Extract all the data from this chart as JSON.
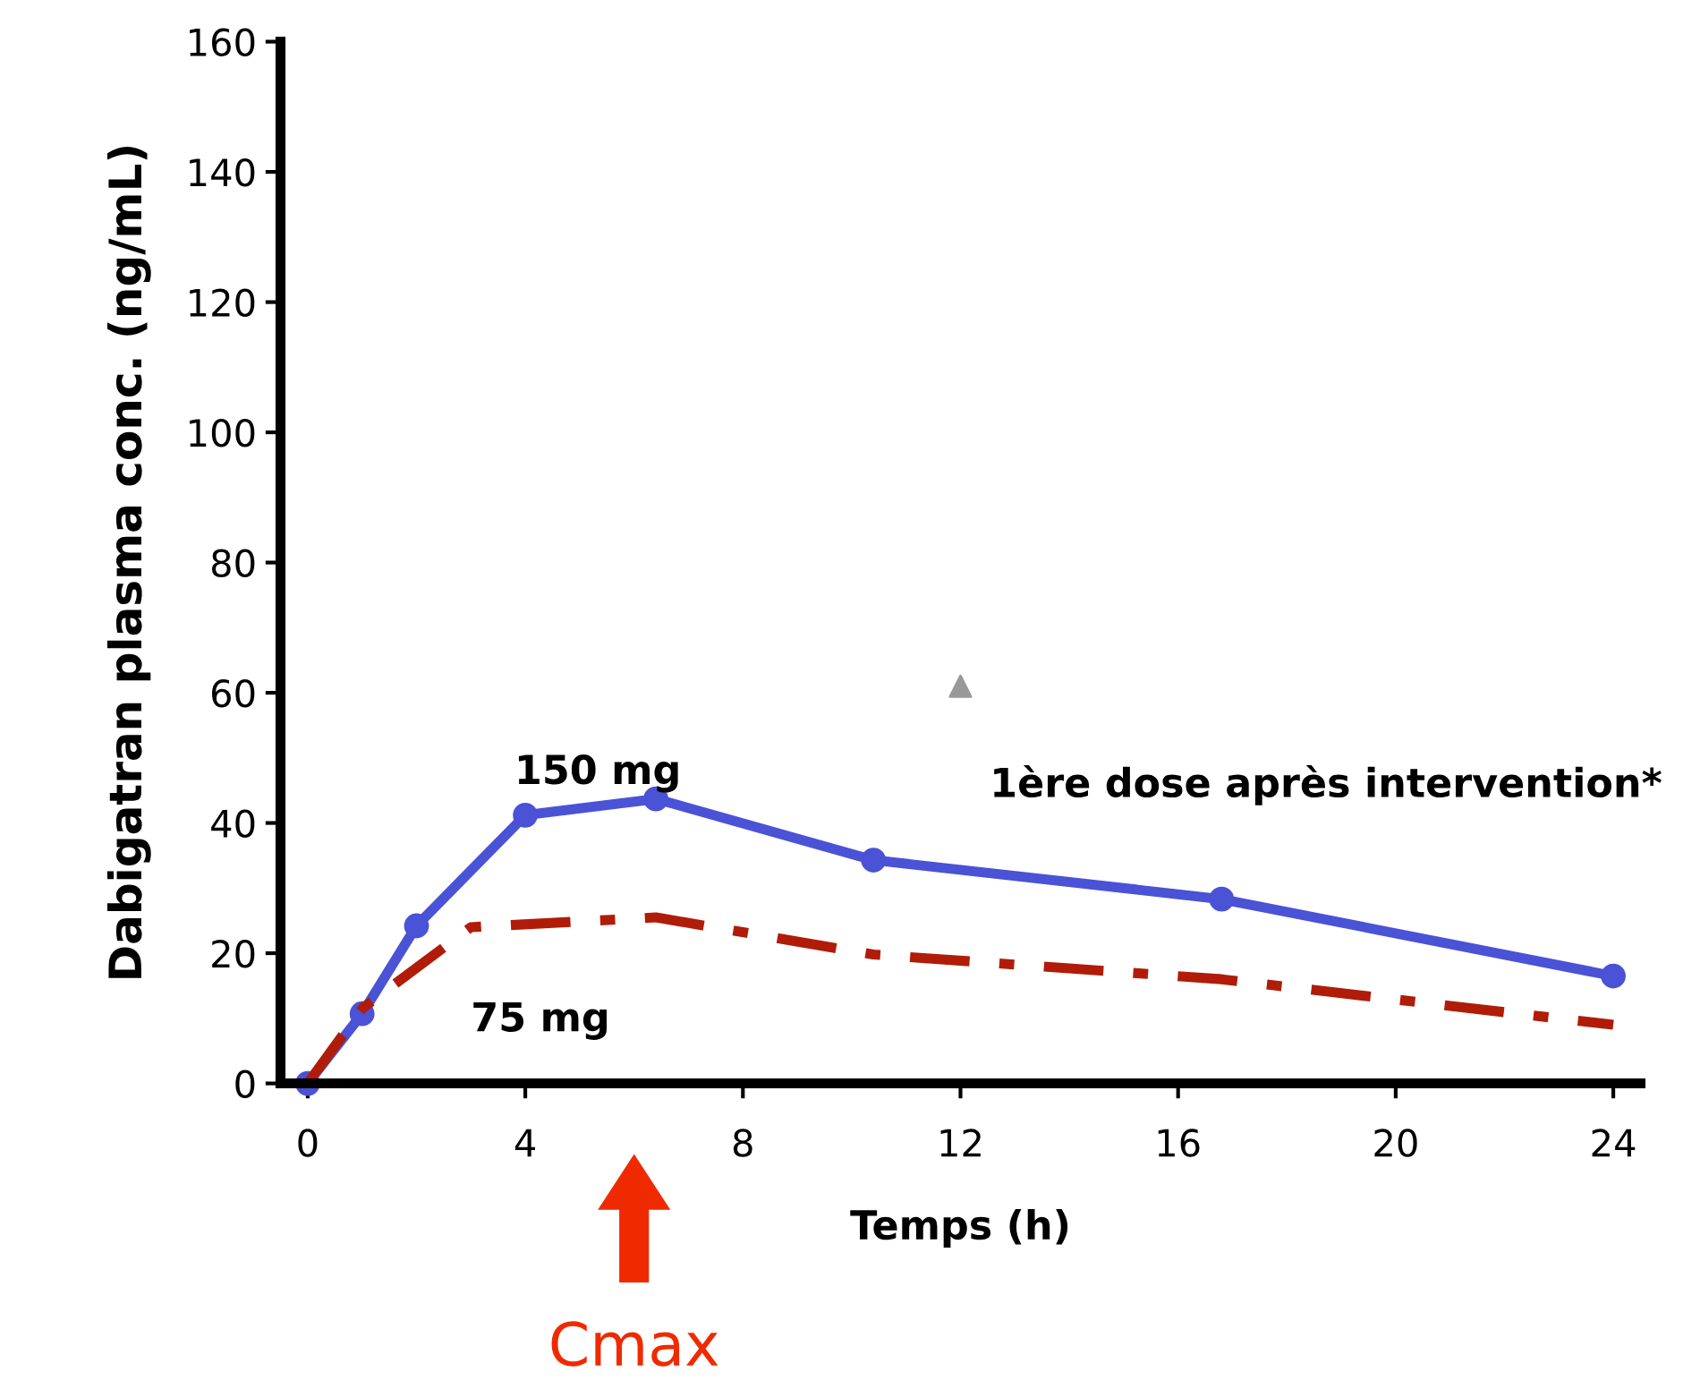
{
  "chart_data": {
    "type": "line",
    "xlabel": "Temps (h)",
    "ylabel": "Dabigatran plasma conc. (ng/mL)",
    "xlim": [
      -0.5,
      24.5
    ],
    "xticks": [
      0,
      4,
      8,
      12,
      16,
      20,
      24
    ],
    "ylim": [
      0,
      160
    ],
    "yticks": [
      0,
      20,
      40,
      60,
      80,
      100,
      120,
      140,
      160
    ],
    "grid": false,
    "legend": false,
    "series": [
      {
        "name": "150 mg",
        "color": "#4a52d6",
        "marker": "circle",
        "line_style": "solid",
        "x": [
          0,
          1,
          2,
          4,
          6.4,
          10.4,
          16.8,
          24
        ],
        "values": [
          0,
          10.7,
          24.2,
          41.2,
          43.7,
          34.3,
          28.3,
          16.5
        ]
      },
      {
        "name": "75 mg",
        "color": "#b01c08",
        "marker": "none",
        "line_style": "dashdot",
        "x": [
          0,
          1,
          3,
          6.4,
          10.4,
          16.8,
          24
        ],
        "values": [
          0,
          11.5,
          24,
          25.5,
          19.8,
          16,
          9
        ]
      },
      {
        "type": "scatter",
        "color": "#999999",
        "marker": "triangle",
        "x": [
          12
        ],
        "values": [
          61
        ]
      }
    ],
    "annotations": [
      {
        "text": "1ère dose après intervention*"
      },
      "Cmax"
    ]
  }
}
